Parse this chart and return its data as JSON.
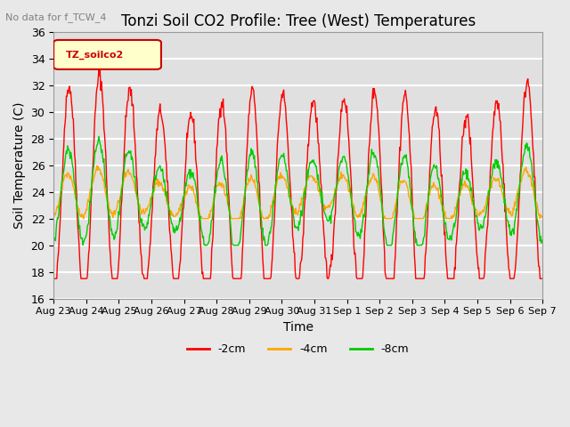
{
  "title": "Tonzi Soil CO2 Profile: Tree (West) Temperatures",
  "subtitle": "No data for f_TCW_4",
  "ylabel": "Soil Temperature (C)",
  "xlabel": "Time",
  "legend_label": "TZ_soilco2",
  "series_labels": [
    "-2cm",
    "-4cm",
    "-8cm"
  ],
  "series_colors": [
    "#ff0000",
    "#ffa500",
    "#00cc00"
  ],
  "ylim": [
    16,
    36
  ],
  "yticks": [
    16,
    18,
    20,
    22,
    24,
    26,
    28,
    30,
    32,
    34,
    36
  ],
  "xtick_labels": [
    "Aug 23",
    "Aug 24",
    "Aug 25",
    "Aug 26",
    "Aug 27",
    "Aug 28",
    "Aug 29",
    "Aug 30",
    "Aug 31",
    "Sep 1",
    "Sep 2",
    "Sep 3",
    "Sep 4",
    "Sep 5",
    "Sep 6",
    "Sep 7"
  ],
  "bg_color": "#e8e8e8",
  "plot_bg_color": "#e0e0e0",
  "grid_color": "#ffffff",
  "n_days": 16,
  "pts_per_day": 48,
  "title_fontsize": 12,
  "axis_fontsize": 10,
  "tick_fontsize": 9
}
